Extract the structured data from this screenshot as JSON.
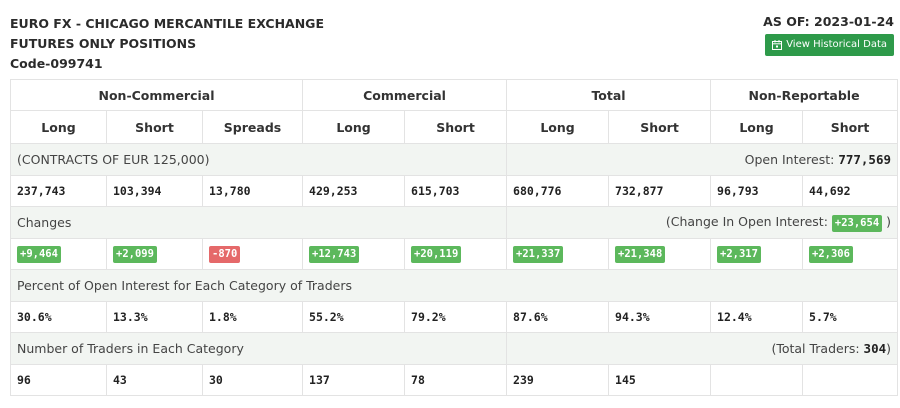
{
  "header": {
    "title_line1": "EURO FX - CHICAGO MERCANTILE EXCHANGE",
    "title_line2": "FUTURES ONLY POSITIONS",
    "code": "Code-099741",
    "as_of": "AS OF: 2023-01-24",
    "historical_button": "View Historical Data"
  },
  "groups": [
    "Non-Commercial",
    "Commercial",
    "Total",
    "Non-Reportable"
  ],
  "columns": [
    "Long",
    "Short",
    "Spreads",
    "Long",
    "Short",
    "Long",
    "Short",
    "Long",
    "Short"
  ],
  "contracts": {
    "label": "(CONTRACTS OF EUR 125,000)",
    "oi_label": "Open Interest: ",
    "oi_value": "777,569",
    "values": [
      "237,743",
      "103,394",
      "13,780",
      "429,253",
      "615,703",
      "680,776",
      "732,877",
      "96,793",
      "44,692"
    ]
  },
  "changes": {
    "label": "Changes",
    "oi_label_pre": "(Change In Open Interest: ",
    "oi_value": "+23,654",
    "oi_label_post": " )",
    "values": [
      "+9,464",
      "+2,099",
      "-870",
      "+12,743",
      "+20,119",
      "+21,337",
      "+21,348",
      "+2,317",
      "+2,306"
    ]
  },
  "percent": {
    "label": "Percent of Open Interest for Each Category of Traders",
    "values": [
      "30.6%",
      "13.3%",
      "1.8%",
      "55.2%",
      "79.2%",
      "87.6%",
      "94.3%",
      "12.4%",
      "5.7%"
    ]
  },
  "traders": {
    "label": "Number of Traders in Each Category",
    "total_label_pre": "(Total Traders: ",
    "total_value": "304",
    "total_label_post": ")",
    "values": [
      "96",
      "43",
      "30",
      "137",
      "78",
      "239",
      "145",
      "",
      ""
    ]
  },
  "colors": {
    "positive": "#5cb85c",
    "negative": "#e5696a",
    "button": "#2e9a4a"
  }
}
